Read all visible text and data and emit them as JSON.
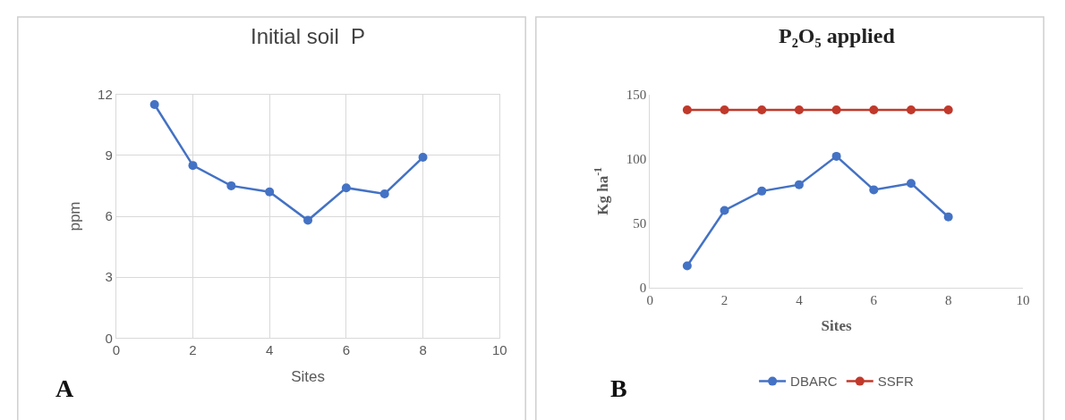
{
  "chart_data": [
    {
      "type": "line",
      "title": "Initial soil  P",
      "xlabel": "Sites",
      "ylabel": "ppm",
      "x": [
        1,
        2,
        3,
        4,
        5,
        6,
        7,
        8
      ],
      "series": [
        {
          "color": "#4472c4",
          "values": [
            11.5,
            8.5,
            7.5,
            7.2,
            5.8,
            7.4,
            7.1,
            8.9
          ]
        }
      ],
      "xlim": [
        0,
        10
      ],
      "xticks": [
        0,
        2,
        4,
        6,
        8,
        10
      ],
      "ylim": [
        0,
        12
      ],
      "yticks": [
        0,
        3,
        6,
        9,
        12
      ],
      "grid": true,
      "marker": "circle",
      "legend": false,
      "annotations": [
        "A"
      ]
    },
    {
      "type": "line",
      "title": "P₂O₅ applied",
      "xlabel": "Sites",
      "ylabel": "Kg ha$^{-1}$",
      "x": [
        1,
        2,
        3,
        4,
        5,
        6,
        7,
        8
      ],
      "series": [
        {
          "name": "DBARC",
          "color": "#4472c4",
          "values": [
            17,
            60,
            75,
            80,
            102,
            76,
            81,
            55
          ]
        },
        {
          "name": "SSFR",
          "color": "#c0392b",
          "values": [
            138,
            138,
            138,
            138,
            138,
            138,
            138,
            138
          ]
        }
      ],
      "xlim": [
        0,
        10
      ],
      "xticks": [
        0,
        2,
        4,
        6,
        8,
        10
      ],
      "ylim": [
        0,
        150
      ],
      "yticks": [
        0,
        50,
        100,
        150
      ],
      "grid": false,
      "marker": "circle",
      "legend": "bottom",
      "annotations": [
        "B"
      ]
    }
  ]
}
